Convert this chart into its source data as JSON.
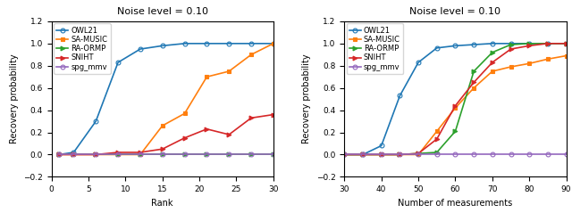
{
  "title": "Noise level = 0.10",
  "left": {
    "xlabel": "Rank",
    "ylabel": "Recovery probability",
    "xlim": [
      0,
      30
    ],
    "ylim": [
      -0.2,
      1.2
    ],
    "xticks": [
      0,
      5,
      10,
      15,
      20,
      25,
      30
    ],
    "yticks": [
      -0.2,
      0.0,
      0.2,
      0.4,
      0.6,
      0.8,
      1.0,
      1.2
    ],
    "series": {
      "OWL21": {
        "x": [
          1,
          3,
          6,
          9,
          12,
          15,
          18,
          21,
          24,
          27,
          30
        ],
        "y": [
          0.0,
          0.02,
          0.3,
          0.83,
          0.95,
          0.98,
          1.0,
          1.0,
          1.0,
          1.0,
          1.0
        ],
        "color": "#1f77b4",
        "marker": "o"
      },
      "SA-MUSIC": {
        "x": [
          1,
          3,
          6,
          9,
          12,
          15,
          18,
          21,
          24,
          27,
          30
        ],
        "y": [
          0.0,
          0.0,
          0.0,
          0.0,
          0.0,
          0.26,
          0.37,
          0.7,
          0.75,
          0.9,
          1.0
        ],
        "color": "#ff7f0e",
        "marker": "s"
      },
      "RA-ORMP": {
        "x": [
          1,
          3,
          6,
          9,
          12,
          15,
          18,
          21,
          24,
          27,
          30
        ],
        "y": [
          0.0,
          0.0,
          0.0,
          0.0,
          0.0,
          0.0,
          0.0,
          0.0,
          0.0,
          0.0,
          0.0
        ],
        "color": "#2ca02c",
        "marker": ">"
      },
      "SNIHT": {
        "x": [
          1,
          3,
          6,
          9,
          12,
          15,
          18,
          21,
          24,
          27,
          30
        ],
        "y": [
          0.0,
          0.0,
          0.0,
          0.02,
          0.02,
          0.05,
          0.15,
          0.23,
          0.18,
          0.33,
          0.36
        ],
        "color": "#d62728",
        "marker": ">"
      },
      "spg_mmv": {
        "x": [
          1,
          3,
          6,
          9,
          12,
          15,
          18,
          21,
          24,
          27,
          30
        ],
        "y": [
          0.0,
          0.0,
          0.0,
          0.0,
          0.0,
          0.0,
          0.0,
          0.0,
          0.0,
          0.0,
          0.0
        ],
        "color": "#9467bd",
        "marker": "o"
      }
    }
  },
  "right": {
    "xlabel": "Number of measurements",
    "ylabel": "Recovery probability",
    "xlim": [
      30,
      90
    ],
    "ylim": [
      -0.2,
      1.2
    ],
    "xticks": [
      30,
      40,
      50,
      60,
      70,
      80,
      90
    ],
    "yticks": [
      -0.2,
      0.0,
      0.2,
      0.4,
      0.6,
      0.8,
      1.0,
      1.2
    ],
    "series": {
      "OWL21": {
        "x": [
          30,
          35,
          40,
          45,
          50,
          55,
          60,
          65,
          70,
          75,
          80,
          85,
          90
        ],
        "y": [
          0.0,
          0.0,
          0.08,
          0.53,
          0.83,
          0.96,
          0.98,
          0.99,
          1.0,
          1.0,
          1.0,
          1.0,
          1.0
        ],
        "color": "#1f77b4",
        "marker": "o"
      },
      "SA-MUSIC": {
        "x": [
          30,
          35,
          40,
          45,
          50,
          55,
          60,
          65,
          70,
          75,
          80,
          85,
          90
        ],
        "y": [
          0.0,
          0.0,
          0.0,
          0.0,
          0.0,
          0.21,
          0.42,
          0.6,
          0.75,
          0.79,
          0.82,
          0.86,
          0.89
        ],
        "color": "#ff7f0e",
        "marker": "s"
      },
      "RA-ORMP": {
        "x": [
          30,
          35,
          40,
          45,
          50,
          55,
          60,
          65,
          70,
          75,
          80,
          85,
          90
        ],
        "y": [
          0.0,
          0.0,
          0.0,
          0.0,
          0.01,
          0.02,
          0.21,
          0.75,
          0.92,
          0.99,
          1.0,
          1.0,
          1.0
        ],
        "color": "#2ca02c",
        "marker": ">"
      },
      "SNIHT": {
        "x": [
          30,
          35,
          40,
          45,
          50,
          55,
          60,
          65,
          70,
          75,
          80,
          85,
          90
        ],
        "y": [
          0.0,
          0.0,
          0.0,
          0.0,
          0.01,
          0.14,
          0.44,
          0.65,
          0.83,
          0.95,
          0.98,
          1.0,
          1.0
        ],
        "color": "#d62728",
        "marker": ">"
      },
      "spg_mmv": {
        "x": [
          30,
          35,
          40,
          45,
          50,
          55,
          60,
          65,
          70,
          75,
          80,
          85,
          90
        ],
        "y": [
          0.0,
          0.0,
          0.0,
          0.0,
          0.0,
          0.0,
          0.0,
          0.0,
          0.0,
          0.0,
          0.0,
          0.0,
          0.0
        ],
        "color": "#9467bd",
        "marker": "o"
      }
    }
  },
  "legend_order": [
    "OWL21",
    "SA-MUSIC",
    "RA-ORMP",
    "SNIHT",
    "spg_mmv"
  ],
  "marker_size": 3.5,
  "linewidth": 1.2,
  "title_fontsize": 8,
  "label_fontsize": 7,
  "tick_fontsize": 6.5,
  "legend_fontsize": 6
}
